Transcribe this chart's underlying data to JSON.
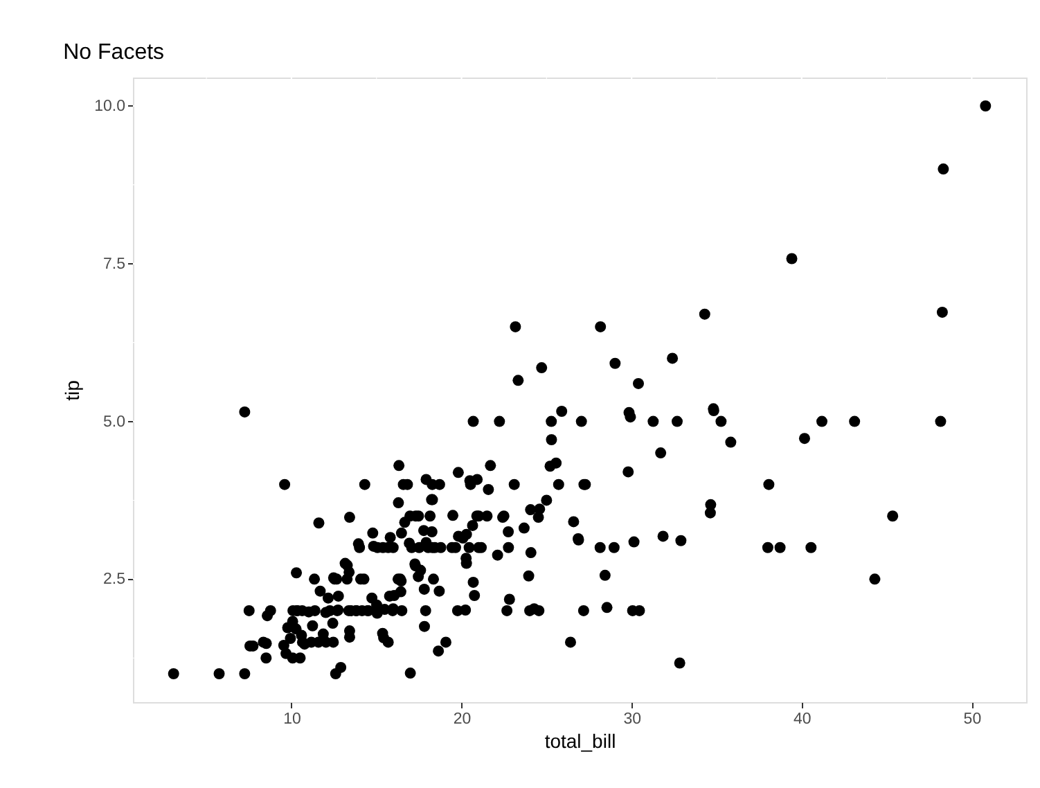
{
  "chart_data": {
    "type": "scatter",
    "title": "No Facets",
    "xlabel": "total_bill",
    "ylabel": "tip",
    "xlim": [
      0.68,
      53.2
    ],
    "ylim": [
      0.55,
      10.45
    ],
    "xticks": [
      {
        "value": 5,
        "label": null
      },
      10,
      {
        "value": 15,
        "label": null
      },
      20,
      {
        "value": 25,
        "label": null
      },
      30,
      {
        "value": 35,
        "label": null
      },
      40,
      {
        "value": 45,
        "label": null
      },
      50
    ],
    "yticks": [
      {
        "value": 1.25,
        "label": null
      },
      {
        "value": 2.5,
        "label": "2.5"
      },
      {
        "value": 3.75,
        "label": null
      },
      {
        "value": 5,
        "label": "5.0"
      },
      {
        "value": 6.25,
        "label": null
      },
      {
        "value": 7.5,
        "label": "7.5"
      },
      {
        "value": 8.75,
        "label": null
      },
      {
        "value": 10,
        "label": "10.0"
      }
    ],
    "grid": true,
    "marker": "circle",
    "series": [
      {
        "color": "#000000",
        "x": [
          16.99,
          21.01,
          23.68,
          24.59,
          25.29,
          8.77,
          26.88,
          15.04,
          14.78,
          10.27,
          35.26,
          15.42,
          18.43,
          14.83,
          21.58,
          16.29,
          16.97,
          20.65,
          17.92,
          20.29,
          15.77,
          39.42,
          19.82,
          17.81,
          13.37,
          12.69,
          21.7,
          19.65,
          9.55,
          18.35,
          15.06,
          20.69,
          17.78,
          24.06,
          16.93,
          18.69,
          31.27,
          16.04,
          17.46,
          13.94,
          9.68,
          30.4,
          18.29,
          22.23,
          32.4,
          28.55,
          18.04,
          12.54,
          10.29,
          34.81,
          9.94,
          25.56,
          19.49,
          38.01,
          26.41,
          11.24,
          48.27,
          20.29,
          13.81,
          11.02,
          18.29,
          17.59,
          20.08,
          16.45,
          3.07,
          20.23,
          15.01,
          12.02,
          17.07,
          26.86,
          25.28,
          14.73,
          10.51,
          17.92,
          27.2,
          22.76,
          17.29,
          19.44,
          16.66,
          10.07,
          32.68,
          15.98,
          34.83,
          18.28,
          24.71,
          21.16,
          28.97,
          22.49,
          5.75,
          16.32,
          22.75,
          40.17,
          27.28,
          12.03,
          21.01,
          12.46,
          11.35,
          15.38,
          44.3,
          22.42,
          20.92,
          15.36,
          20.49,
          25.21,
          18.24,
          14.31,
          14.0,
          7.25,
          38.07,
          23.95,
          25.71,
          17.31,
          29.93,
          10.65,
          12.43,
          24.08,
          11.69,
          13.42,
          14.26,
          15.95,
          12.48,
          29.8,
          8.52,
          14.52,
          11.38,
          22.82,
          19.08,
          20.27,
          11.17,
          12.26,
          18.26,
          8.51,
          10.33,
          14.15,
          13.16,
          17.47,
          34.3,
          41.19,
          27.05,
          16.43,
          8.35,
          18.64,
          11.87,
          9.78,
          7.51,
          14.07,
          17.26,
          24.55,
          19.77,
          29.85,
          48.17,
          25.0,
          13.39,
          16.49,
          21.5,
          12.66,
          13.81,
          17.51,
          24.52,
          20.76,
          31.71,
          10.59,
          10.63,
          50.81,
          15.81,
          7.25,
          31.85,
          16.82,
          32.9,
          17.89,
          14.48,
          9.6,
          34.63,
          34.65,
          23.33,
          45.35,
          23.17,
          40.55,
          20.69,
          20.9,
          30.46,
          18.15,
          23.1,
          15.69,
          19.81,
          28.44,
          15.48,
          16.58,
          7.56,
          10.34,
          43.11,
          13.51,
          18.71,
          12.74,
          16.4,
          20.53,
          16.47,
          26.59,
          38.73,
          24.27,
          12.76,
          30.06,
          25.89,
          48.33,
          13.27,
          28.17,
          12.9,
          28.15,
          11.59,
          7.74,
          30.14,
          12.16,
          13.42,
          8.58,
          15.98,
          13.42,
          16.27,
          10.09,
          20.45,
          13.28,
          22.12,
          24.01,
          15.69,
          11.61,
          10.77,
          10.07,
          12.6,
          32.83,
          35.83,
          29.03,
          27.18,
          22.67,
          17.82,
          18.78
        ],
        "values": [
          1.01,
          3.5,
          3.31,
          3.61,
          4.71,
          2.0,
          3.12,
          1.96,
          3.23,
          1.71,
          5.0,
          1.57,
          3.0,
          3.02,
          3.92,
          3.71,
          3.5,
          3.35,
          4.08,
          2.75,
          2.23,
          7.58,
          3.18,
          2.34,
          2.0,
          2.0,
          4.3,
          3.0,
          1.45,
          2.5,
          3.0,
          2.45,
          3.27,
          3.6,
          3.07,
          2.31,
          5.0,
          2.24,
          2.54,
          3.06,
          1.32,
          5.6,
          3.0,
          5.0,
          6.0,
          2.05,
          3.0,
          2.5,
          2.6,
          5.2,
          1.56,
          4.34,
          3.51,
          3.0,
          1.5,
          1.76,
          6.73,
          3.21,
          2.0,
          1.98,
          3.76,
          2.64,
          3.15,
          2.47,
          1.0,
          2.01,
          2.09,
          1.97,
          3.0,
          3.14,
          5.0,
          2.2,
          1.25,
          3.08,
          4.0,
          3.0,
          2.71,
          3.0,
          3.4,
          1.83,
          5.0,
          2.03,
          5.17,
          4.0,
          5.85,
          3.0,
          3.0,
          3.5,
          1.0,
          4.3,
          3.25,
          4.73,
          4.0,
          1.5,
          3.0,
          1.5,
          2.5,
          3.0,
          2.5,
          3.48,
          4.08,
          1.64,
          4.06,
          4.29,
          3.76,
          4.0,
          3.0,
          1.0,
          4.0,
          2.55,
          4.0,
          3.5,
          5.07,
          1.5,
          1.8,
          2.92,
          2.31,
          1.68,
          2.5,
          2.0,
          2.52,
          4.2,
          1.48,
          2.0,
          2.0,
          2.18,
          1.5,
          2.83,
          1.5,
          2.0,
          3.25,
          1.25,
          2.0,
          2.0,
          2.75,
          3.5,
          6.7,
          5.0,
          5.0,
          2.3,
          1.5,
          1.36,
          1.63,
          1.73,
          2.0,
          2.5,
          2.74,
          2.0,
          2.0,
          5.14,
          5.0,
          3.75,
          2.61,
          2.0,
          3.5,
          2.5,
          2.0,
          3.0,
          3.48,
          2.24,
          4.5,
          1.61,
          2.0,
          10.0,
          3.16,
          5.15,
          3.18,
          4.0,
          3.11,
          2.0,
          2.0,
          4.0,
          3.55,
          3.68,
          5.65,
          3.5,
          6.5,
          3.0,
          5.0,
          3.5,
          2.0,
          3.5,
          4.0,
          1.5,
          4.19,
          2.56,
          2.02,
          4.0,
          1.44,
          2.0,
          5.0,
          2.0,
          4.0,
          2.01,
          2.5,
          4.0,
          3.23,
          3.41,
          3.0,
          2.03,
          2.23,
          2.0,
          5.16,
          9.0,
          2.5,
          6.5,
          1.1,
          3.0,
          1.5,
          1.44,
          3.09,
          2.2,
          3.48,
          1.92,
          3.0,
          1.58,
          2.5,
          2.0,
          3.0,
          2.72,
          2.88,
          2.0,
          3.0,
          3.39,
          1.47,
          1.25,
          1.0,
          1.17,
          4.67,
          5.92,
          2.0,
          2.0,
          1.75,
          3.0
        ]
      }
    ]
  }
}
